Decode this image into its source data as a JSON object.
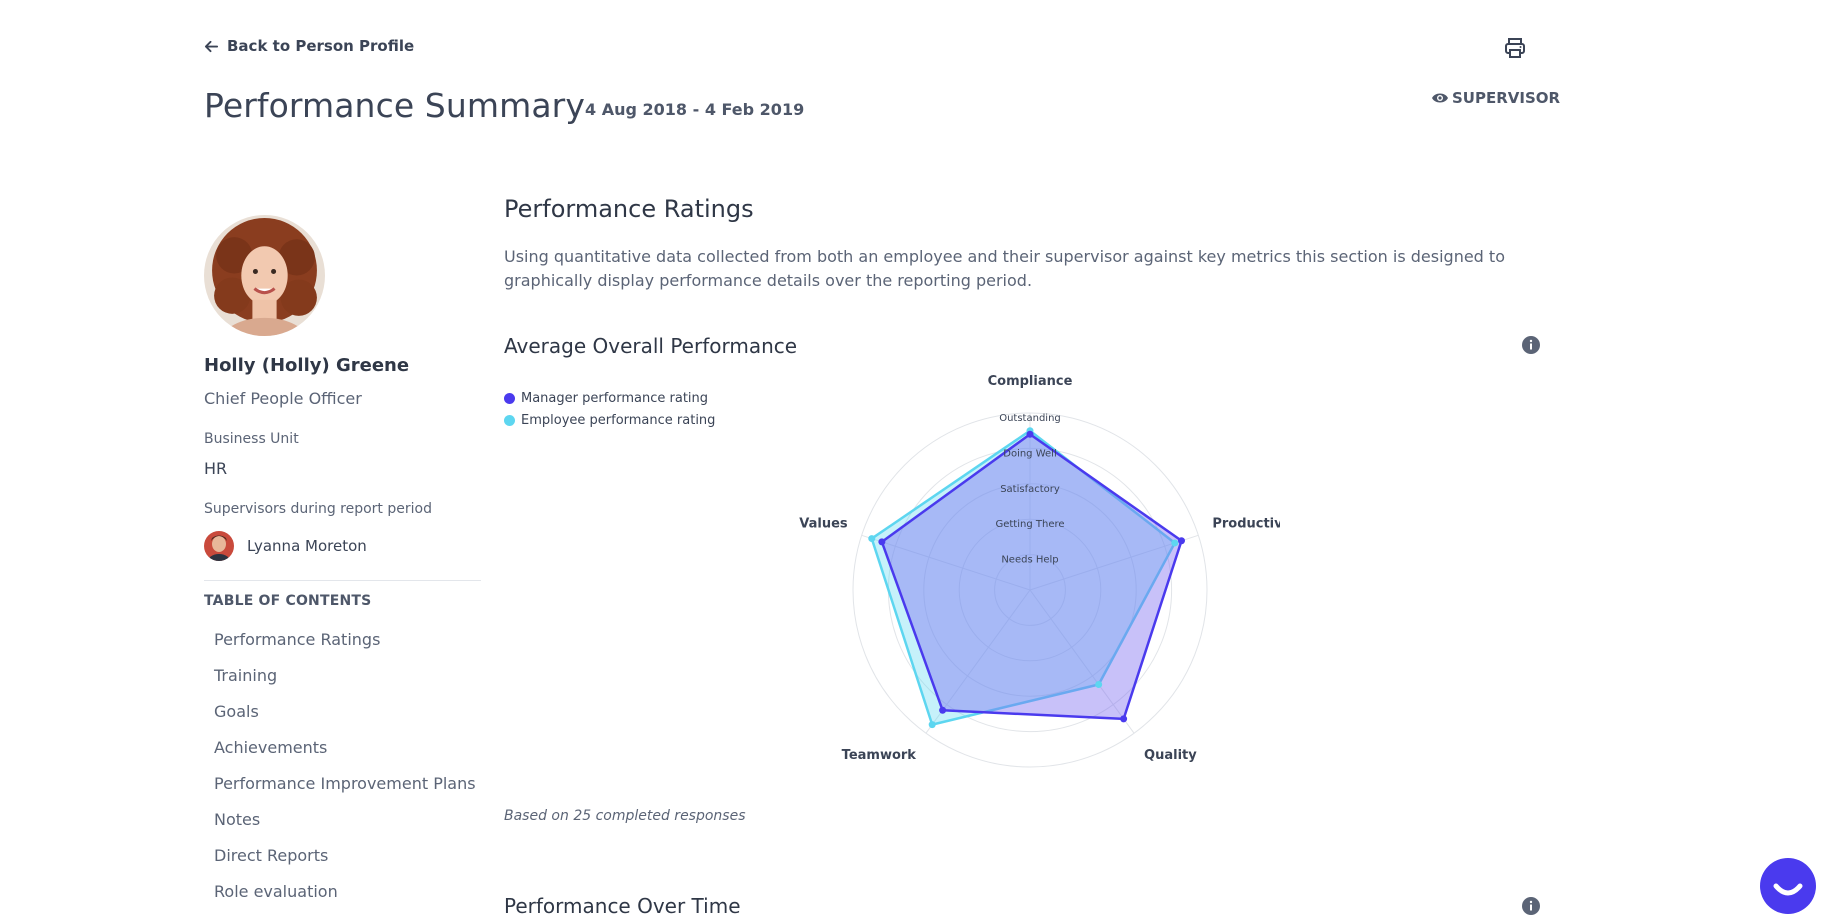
{
  "header": {
    "back_label": "Back to Person Profile",
    "title": "Performance Summary",
    "date_range": "4 Aug 2018 - 4 Feb 2019",
    "role": "SUPERVISOR"
  },
  "person": {
    "name": "Holly (Holly) Greene",
    "job_title": "Chief People Officer",
    "business_unit_label": "Business Unit",
    "business_unit": "HR",
    "supervisors_label": "Supervisors during report period",
    "supervisors": [
      "Lyanna Moreton"
    ]
  },
  "toc": {
    "title": "TABLE OF CONTENTS",
    "items": [
      "Performance Ratings",
      "Training",
      "Goals",
      "Achievements",
      "Performance Improvement Plans",
      "Notes",
      "Direct Reports",
      "Role evaluation"
    ]
  },
  "ratings": {
    "title": "Performance Ratings",
    "description": "Using quantitative data collected from both an employee and their supervisor against key metrics this section is designed to graphically display performance details over the reporting period.",
    "avg_title": "Average Overall Performance",
    "footnote": "Based on 25 completed responses",
    "over_time_title": "Performance Over Time"
  },
  "colors": {
    "manager": "#4a3aee",
    "employee": "#5dd6f0",
    "chat": "#4a3aee"
  },
  "chart_data": {
    "type": "radar",
    "axes": [
      "Compliance",
      "Productivity",
      "Quality",
      "Teamwork",
      "Values"
    ],
    "levels": [
      "Needs Help",
      "Getting There",
      "Satisfactory",
      "Doing Well",
      "Outstanding"
    ],
    "range": [
      0,
      5
    ],
    "series": [
      {
        "name": "Manager performance rating",
        "values": [
          4.4,
          4.5,
          4.5,
          4.2,
          4.4
        ]
      },
      {
        "name": "Employee performance rating",
        "values": [
          4.5,
          4.3,
          3.3,
          4.7,
          4.7
        ]
      }
    ],
    "legend_position": "top-left"
  }
}
